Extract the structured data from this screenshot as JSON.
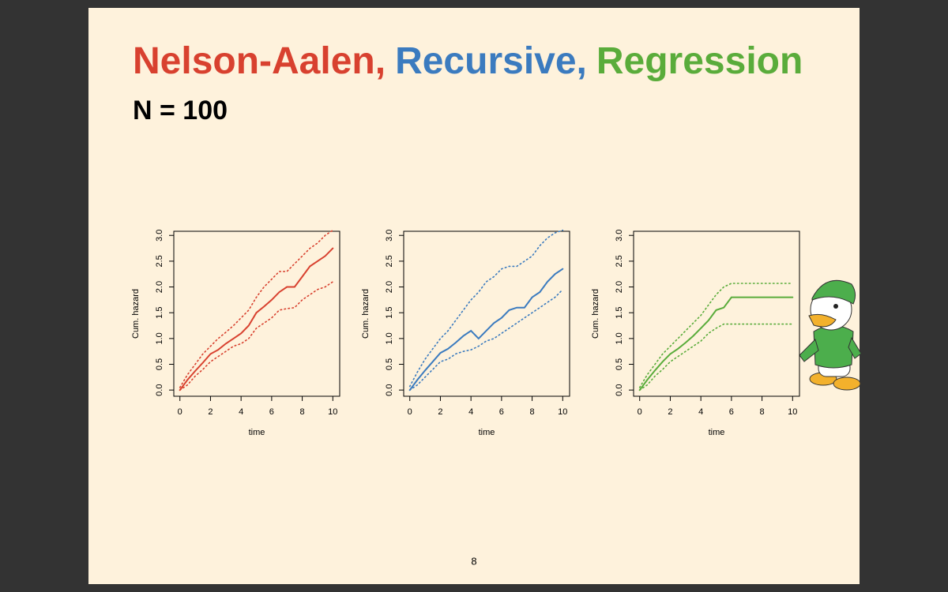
{
  "slide": {
    "title": [
      {
        "text": "Nelson-Aalen,",
        "color": "#d8412f"
      },
      {
        "text": "Recursive,",
        "color": "#3b7bbf"
      },
      {
        "text": "Regression",
        "color": "#5aac3b"
      }
    ],
    "subtitle": "N = 100",
    "page": "8"
  },
  "chart_data": [
    {
      "type": "line",
      "xlabel": "time",
      "ylabel": "Cum. hazard",
      "xlim": [
        -0.4,
        10.45
      ],
      "ylim": [
        -0.12,
        3.08
      ],
      "xticks": [
        0,
        2,
        4,
        6,
        8,
        10
      ],
      "yticks": [
        {
          "value": 0,
          "label": "0.0"
        },
        {
          "value": 0.5,
          "label": "0.5"
        },
        {
          "value": 1,
          "label": "1.0"
        },
        {
          "value": 1.5,
          "label": "1.5"
        },
        {
          "value": 2,
          "label": "2.0"
        },
        {
          "value": 2.5,
          "label": "2.5"
        },
        {
          "value": 3,
          "label": "3.0"
        }
      ],
      "x": [
        0,
        0.5,
        1,
        1.5,
        2,
        2.5,
        3,
        3.5,
        4,
        4.5,
        5,
        5.5,
        6,
        6.5,
        7,
        7.5,
        8,
        8.5,
        9,
        9.5,
        10
      ],
      "series": [
        {
          "color": "#d8412f",
          "dash": "solid",
          "values": [
            0,
            0.2,
            0.37,
            0.53,
            0.7,
            0.78,
            0.9,
            1.0,
            1.1,
            1.25,
            1.5,
            1.62,
            1.75,
            1.9,
            2.0,
            2.0,
            2.2,
            2.4,
            2.5,
            2.6,
            2.75
          ]
        },
        {
          "color": "#d8412f",
          "dash": "dotted",
          "values": [
            0.05,
            0.3,
            0.5,
            0.7,
            0.85,
            1.0,
            1.12,
            1.25,
            1.4,
            1.55,
            1.8,
            2.0,
            2.15,
            2.3,
            2.3,
            2.45,
            2.6,
            2.75,
            2.85,
            3.0,
            3.1
          ]
        },
        {
          "color": "#d8412f",
          "dash": "dotted",
          "values": [
            0,
            0.1,
            0.27,
            0.4,
            0.55,
            0.65,
            0.75,
            0.85,
            0.9,
            1.0,
            1.2,
            1.3,
            1.4,
            1.55,
            1.58,
            1.6,
            1.75,
            1.85,
            1.95,
            2.0,
            2.1
          ]
        }
      ]
    },
    {
      "type": "line",
      "xlabel": "time",
      "ylabel": "Cum. hazard",
      "xlim": [
        -0.4,
        10.45
      ],
      "ylim": [
        -0.12,
        3.08
      ],
      "xticks": [
        0,
        2,
        4,
        6,
        8,
        10
      ],
      "yticks": [
        {
          "value": 0,
          "label": "0.0"
        },
        {
          "value": 0.5,
          "label": "0.5"
        },
        {
          "value": 1,
          "label": "1.0"
        },
        {
          "value": 1.5,
          "label": "1.5"
        },
        {
          "value": 2,
          "label": "2.0"
        },
        {
          "value": 2.5,
          "label": "2.5"
        },
        {
          "value": 3,
          "label": "3.0"
        }
      ],
      "x": [
        0,
        0.5,
        1,
        1.5,
        2,
        2.5,
        3,
        3.5,
        4,
        4.5,
        5,
        5.5,
        6,
        6.5,
        7,
        7.5,
        8,
        8.5,
        9,
        9.5,
        10
      ],
      "series": [
        {
          "color": "#3b7bbf",
          "dash": "solid",
          "values": [
            0,
            0.2,
            0.38,
            0.55,
            0.72,
            0.8,
            0.92,
            1.05,
            1.15,
            1.0,
            1.15,
            1.3,
            1.4,
            1.55,
            1.6,
            1.6,
            1.8,
            1.9,
            2.1,
            2.25,
            2.35
          ]
        },
        {
          "color": "#3b7bbf",
          "dash": "dotted",
          "values": [
            0.07,
            0.35,
            0.6,
            0.8,
            1.0,
            1.15,
            1.35,
            1.55,
            1.75,
            1.9,
            2.1,
            2.2,
            2.35,
            2.4,
            2.4,
            2.5,
            2.6,
            2.8,
            2.95,
            3.05,
            3.1
          ]
        },
        {
          "color": "#3b7bbf",
          "dash": "dotted",
          "values": [
            0,
            0.1,
            0.25,
            0.4,
            0.55,
            0.6,
            0.7,
            0.75,
            0.78,
            0.85,
            0.95,
            1.0,
            1.1,
            1.2,
            1.3,
            1.4,
            1.5,
            1.6,
            1.7,
            1.8,
            1.95
          ]
        }
      ]
    },
    {
      "type": "line",
      "xlabel": "time",
      "ylabel": "Cum. hazard",
      "xlim": [
        -0.4,
        10.45
      ],
      "ylim": [
        -0.12,
        3.08
      ],
      "xticks": [
        0,
        2,
        4,
        6,
        8,
        10
      ],
      "yticks": [
        {
          "value": 0,
          "label": "0.0"
        },
        {
          "value": 0.5,
          "label": "0.5"
        },
        {
          "value": 1,
          "label": "1.0"
        },
        {
          "value": 1.5,
          "label": "1.5"
        },
        {
          "value": 2,
          "label": "2.0"
        },
        {
          "value": 2.5,
          "label": "2.5"
        },
        {
          "value": 3,
          "label": "3.0"
        }
      ],
      "x": [
        0,
        0.5,
        1,
        1.5,
        2,
        2.5,
        3,
        3.5,
        4,
        4.5,
        5,
        5.5,
        6,
        6.5,
        7,
        7.5,
        8,
        8.5,
        9,
        9.5,
        10
      ],
      "series": [
        {
          "color": "#5aac3b",
          "dash": "solid",
          "values": [
            0,
            0.2,
            0.38,
            0.55,
            0.7,
            0.8,
            0.92,
            1.05,
            1.2,
            1.35,
            1.55,
            1.6,
            1.8,
            1.8,
            1.8,
            1.8,
            1.8,
            1.8,
            1.8,
            1.8,
            1.8
          ]
        },
        {
          "color": "#5aac3b",
          "dash": "dotted",
          "values": [
            0.05,
            0.3,
            0.5,
            0.7,
            0.85,
            1.0,
            1.15,
            1.3,
            1.45,
            1.65,
            1.85,
            2.0,
            2.07,
            2.07,
            2.07,
            2.07,
            2.07,
            2.07,
            2.07,
            2.07,
            2.07
          ]
        },
        {
          "color": "#5aac3b",
          "dash": "dotted",
          "values": [
            0,
            0.1,
            0.27,
            0.4,
            0.55,
            0.65,
            0.75,
            0.85,
            0.95,
            1.1,
            1.2,
            1.28,
            1.28,
            1.28,
            1.28,
            1.28,
            1.28,
            1.28,
            1.28,
            1.28,
            1.28
          ]
        }
      ]
    }
  ]
}
